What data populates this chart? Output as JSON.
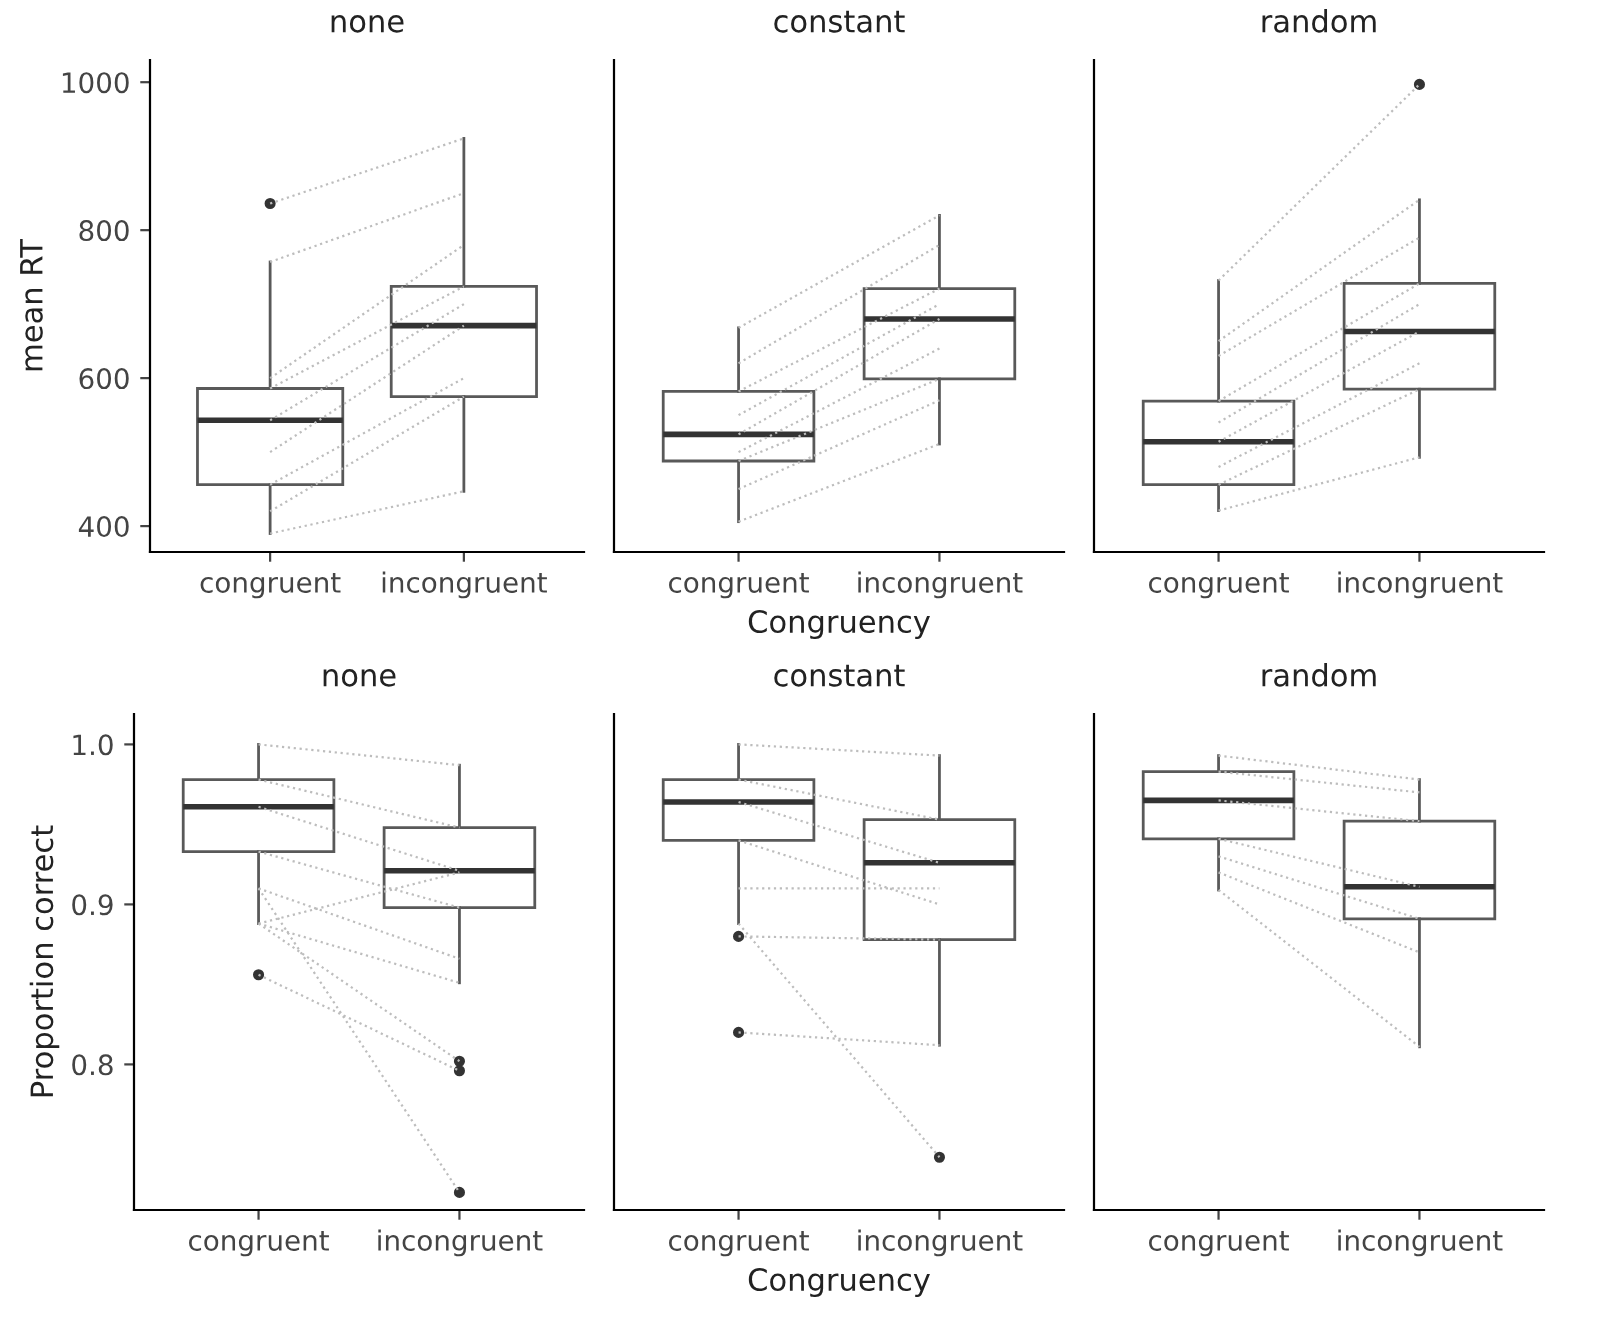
{
  "chart_data": [
    {
      "type": "box",
      "title": "none",
      "ylabel": "mean RT",
      "categories": [
        "congruent",
        "incongruent"
      ],
      "ylim": [
        365,
        1030
      ],
      "yticks": [
        400,
        600,
        800,
        1000
      ],
      "grid": false,
      "tick_labels": true,
      "color": "#595959",
      "boxes": [
        {
          "low": 390,
          "q1": 456,
          "median": 543,
          "q3": 586,
          "high": 757,
          "outliers": [
            836
          ]
        },
        {
          "low": 447,
          "q1": 575,
          "median": 671,
          "q3": 724,
          "high": 924
        }
      ],
      "series": [
        {
          "type": "line",
          "color": "#bdbdbd",
          "line_style": "dotted",
          "values": [
            836,
            924
          ]
        },
        {
          "type": "line",
          "color": "#bdbdbd",
          "line_style": "dotted",
          "values": [
            757,
            850
          ]
        },
        {
          "type": "line",
          "color": "#bdbdbd",
          "line_style": "dotted",
          "values": [
            600,
            780
          ]
        },
        {
          "type": "line",
          "color": "#bdbdbd",
          "line_style": "dotted",
          "values": [
            586,
            724
          ]
        },
        {
          "type": "line",
          "color": "#bdbdbd",
          "line_style": "dotted",
          "values": [
            543,
            700
          ]
        },
        {
          "type": "line",
          "color": "#bdbdbd",
          "line_style": "dotted",
          "values": [
            500,
            671
          ]
        },
        {
          "type": "line",
          "color": "#bdbdbd",
          "line_style": "dotted",
          "values": [
            456,
            600
          ]
        },
        {
          "type": "line",
          "color": "#bdbdbd",
          "line_style": "dotted",
          "values": [
            420,
            575
          ]
        },
        {
          "type": "line",
          "color": "#bdbdbd",
          "line_style": "dotted",
          "values": [
            390,
            447
          ]
        }
      ]
    },
    {
      "type": "box",
      "title": "constant",
      "xlabel": "Congruency",
      "categories": [
        "congruent",
        "incongruent"
      ],
      "ylim": [
        365,
        1030
      ],
      "grid": false,
      "tick_labels": "x",
      "color": "#595959",
      "boxes": [
        {
          "low": 406,
          "q1": 488,
          "median": 524,
          "q3": 582,
          "high": 668
        },
        {
          "low": 511,
          "q1": 599,
          "median": 680,
          "q3": 721,
          "high": 820
        }
      ],
      "series": [
        {
          "type": "line",
          "color": "#bdbdbd",
          "line_style": "dotted",
          "values": [
            668,
            820
          ]
        },
        {
          "type": "line",
          "color": "#bdbdbd",
          "line_style": "dotted",
          "values": [
            620,
            780
          ]
        },
        {
          "type": "line",
          "color": "#bdbdbd",
          "line_style": "dotted",
          "values": [
            582,
            721
          ]
        },
        {
          "type": "line",
          "color": "#bdbdbd",
          "line_style": "dotted",
          "values": [
            550,
            700
          ]
        },
        {
          "type": "line",
          "color": "#bdbdbd",
          "line_style": "dotted",
          "values": [
            524,
            680
          ]
        },
        {
          "type": "line",
          "color": "#bdbdbd",
          "line_style": "dotted",
          "values": [
            500,
            640
          ]
        },
        {
          "type": "line",
          "color": "#bdbdbd",
          "line_style": "dotted",
          "values": [
            488,
            599
          ]
        },
        {
          "type": "line",
          "color": "#bdbdbd",
          "line_style": "dotted",
          "values": [
            450,
            570
          ]
        },
        {
          "type": "line",
          "color": "#bdbdbd",
          "line_style": "dotted",
          "values": [
            406,
            511
          ]
        }
      ]
    },
    {
      "type": "box",
      "title": "random",
      "categories": [
        "congruent",
        "incongruent"
      ],
      "ylim": [
        365,
        1030
      ],
      "grid": false,
      "tick_labels": "x",
      "color": "#595959",
      "boxes": [
        {
          "low": 421,
          "q1": 456,
          "median": 514,
          "q3": 569,
          "high": 732
        },
        {
          "low": 493,
          "q1": 585,
          "median": 663,
          "q3": 728,
          "high": 841,
          "outliers": [
            997
          ]
        }
      ],
      "series": [
        {
          "type": "line",
          "color": "#bdbdbd",
          "line_style": "dotted",
          "values": [
            732,
            997
          ]
        },
        {
          "type": "line",
          "color": "#bdbdbd",
          "line_style": "dotted",
          "values": [
            650,
            841
          ]
        },
        {
          "type": "line",
          "color": "#bdbdbd",
          "line_style": "dotted",
          "values": [
            630,
            790
          ]
        },
        {
          "type": "line",
          "color": "#bdbdbd",
          "line_style": "dotted",
          "values": [
            569,
            728
          ]
        },
        {
          "type": "line",
          "color": "#bdbdbd",
          "line_style": "dotted",
          "values": [
            540,
            700
          ]
        },
        {
          "type": "line",
          "color": "#bdbdbd",
          "line_style": "dotted",
          "values": [
            514,
            663
          ]
        },
        {
          "type": "line",
          "color": "#bdbdbd",
          "line_style": "dotted",
          "values": [
            480,
            620
          ]
        },
        {
          "type": "line",
          "color": "#bdbdbd",
          "line_style": "dotted",
          "values": [
            456,
            585
          ]
        },
        {
          "type": "line",
          "color": "#bdbdbd",
          "line_style": "dotted",
          "values": [
            421,
            493
          ]
        }
      ]
    },
    {
      "type": "box",
      "title": "none",
      "ylabel": "Proportion correct",
      "categories": [
        "congruent",
        "incongruent"
      ],
      "ylim": [
        0.709,
        1.019
      ],
      "yticks": [
        {
          "value": 0.8,
          "label": "0.8"
        },
        {
          "value": 0.9,
          "label": "0.9"
        },
        {
          "value": 1.0,
          "label": "1.0"
        }
      ],
      "grid": false,
      "tick_labels": true,
      "color": "#595959",
      "boxes": [
        {
          "low": 0.888,
          "q1": 0.933,
          "median": 0.961,
          "q3": 0.978,
          "high": 1.0,
          "outliers": [
            0.856
          ]
        },
        {
          "low": 0.851,
          "q1": 0.898,
          "median": 0.921,
          "q3": 0.948,
          "high": 0.987,
          "outliers": [
            0.802,
            0.796,
            0.72
          ]
        }
      ],
      "series": [
        {
          "type": "line",
          "color": "#bdbdbd",
          "line_style": "dotted",
          "values": [
            1.0,
            0.987
          ]
        },
        {
          "type": "line",
          "color": "#bdbdbd",
          "line_style": "dotted",
          "values": [
            0.978,
            0.948
          ]
        },
        {
          "type": "line",
          "color": "#bdbdbd",
          "line_style": "dotted",
          "values": [
            0.961,
            0.921
          ]
        },
        {
          "type": "line",
          "color": "#bdbdbd",
          "line_style": "dotted",
          "values": [
            0.933,
            0.898
          ]
        },
        {
          "type": "line",
          "color": "#bdbdbd",
          "line_style": "dotted",
          "values": [
            0.91,
            0.866
          ]
        },
        {
          "type": "line",
          "color": "#bdbdbd",
          "line_style": "dotted",
          "values": [
            0.888,
            0.92
          ]
        },
        {
          "type": "line",
          "color": "#bdbdbd",
          "line_style": "dotted",
          "values": [
            0.888,
            0.851
          ]
        },
        {
          "type": "line",
          "color": "#bdbdbd",
          "line_style": "dotted",
          "values": [
            0.888,
            0.802
          ]
        },
        {
          "type": "line",
          "color": "#bdbdbd",
          "line_style": "dotted",
          "values": [
            0.856,
            0.796
          ]
        },
        {
          "type": "line",
          "color": "#bdbdbd",
          "line_style": "dotted",
          "values": [
            0.91,
            0.72
          ]
        }
      ]
    },
    {
      "type": "box",
      "title": "constant",
      "xlabel": "Congruency",
      "categories": [
        "congruent",
        "incongruent"
      ],
      "ylim": [
        0.709,
        1.019
      ],
      "grid": false,
      "tick_labels": "x",
      "color": "#595959",
      "boxes": [
        {
          "low": 0.888,
          "q1": 0.94,
          "median": 0.964,
          "q3": 0.978,
          "high": 1.0,
          "outliers": [
            0.88,
            0.82
          ]
        },
        {
          "low": 0.812,
          "q1": 0.878,
          "median": 0.926,
          "q3": 0.953,
          "high": 0.993,
          "outliers": [
            0.742
          ]
        }
      ],
      "series": [
        {
          "type": "line",
          "color": "#bdbdbd",
          "line_style": "dotted",
          "values": [
            1.0,
            0.993
          ]
        },
        {
          "type": "line",
          "color": "#bdbdbd",
          "line_style": "dotted",
          "values": [
            0.978,
            0.953
          ]
        },
        {
          "type": "line",
          "color": "#bdbdbd",
          "line_style": "dotted",
          "values": [
            0.964,
            0.926
          ]
        },
        {
          "type": "line",
          "color": "#bdbdbd",
          "line_style": "dotted",
          "values": [
            0.94,
            0.9
          ]
        },
        {
          "type": "line",
          "color": "#bdbdbd",
          "line_style": "dotted",
          "values": [
            0.91,
            0.91
          ]
        },
        {
          "type": "line",
          "color": "#bdbdbd",
          "line_style": "dotted",
          "values": [
            0.88,
            0.878
          ]
        },
        {
          "type": "line",
          "color": "#bdbdbd",
          "line_style": "dotted",
          "values": [
            0.888,
            0.742
          ]
        },
        {
          "type": "line",
          "color": "#bdbdbd",
          "line_style": "dotted",
          "values": [
            0.82,
            0.812
          ]
        }
      ]
    },
    {
      "type": "box",
      "title": "random",
      "categories": [
        "congruent",
        "incongruent"
      ],
      "ylim": [
        0.709,
        1.019
      ],
      "grid": false,
      "tick_labels": "x",
      "color": "#595959",
      "boxes": [
        {
          "low": 0.909,
          "q1": 0.941,
          "median": 0.965,
          "q3": 0.983,
          "high": 0.993
        },
        {
          "low": 0.811,
          "q1": 0.891,
          "median": 0.911,
          "q3": 0.952,
          "high": 0.978
        }
      ],
      "series": [
        {
          "type": "line",
          "color": "#bdbdbd",
          "line_style": "dotted",
          "values": [
            0.993,
            0.978
          ]
        },
        {
          "type": "line",
          "color": "#bdbdbd",
          "line_style": "dotted",
          "values": [
            0.983,
            0.97
          ]
        },
        {
          "type": "line",
          "color": "#bdbdbd",
          "line_style": "dotted",
          "values": [
            0.965,
            0.952
          ]
        },
        {
          "type": "line",
          "color": "#bdbdbd",
          "line_style": "dotted",
          "values": [
            0.941,
            0.911
          ]
        },
        {
          "type": "line",
          "color": "#bdbdbd",
          "line_style": "dotted",
          "values": [
            0.93,
            0.891
          ]
        },
        {
          "type": "line",
          "color": "#bdbdbd",
          "line_style": "dotted",
          "values": [
            0.92,
            0.87
          ]
        },
        {
          "type": "line",
          "color": "#bdbdbd",
          "line_style": "dotted",
          "values": [
            0.909,
            0.811
          ]
        }
      ]
    }
  ]
}
